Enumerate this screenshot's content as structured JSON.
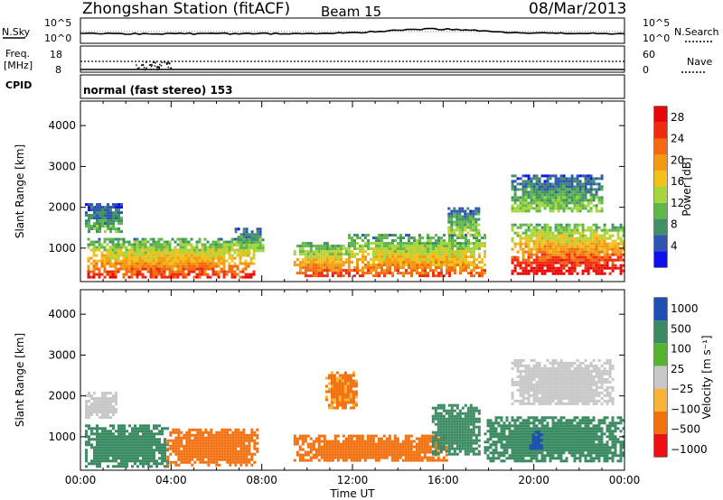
{
  "header": {
    "station": "Zhongshan Station (fitACF)",
    "beam": "Beam 15",
    "date": "08/Mar/2013"
  },
  "noise_panel": {
    "left_label": "N.Sky",
    "right_label": "N.Search",
    "tick_top": "10^5",
    "tick_bottom": "10^0"
  },
  "freq_panel": {
    "left_label_1": "Freq.",
    "left_label_2": "[MHz]",
    "left_ticks": [
      "18",
      "8"
    ],
    "right_ticks": [
      "60",
      "0"
    ],
    "right_label": "Nave"
  },
  "cpid": {
    "label": "CPID",
    "value": "normal (fast stereo) 153"
  },
  "colors": {
    "power": [
      "#1010ee",
      "#2e56b0",
      "#3f8f67",
      "#5fb74a",
      "#a6d63c",
      "#f2c11c",
      "#f39a12",
      "#f36a10",
      "#f02a0c",
      "#e60808"
    ],
    "velocity": [
      "#ee1010",
      "#f3700f",
      "#f7b33a",
      "#c8c8c8",
      "#55b32d",
      "#3a8a62",
      "#1d4fb5"
    ]
  },
  "chart_data": [
    {
      "type": "heatmap",
      "name": "power",
      "xlabel": "Time UT",
      "ylabel": "Slant Range [km]",
      "xlim": [
        0,
        24
      ],
      "ylim": [
        180,
        4600
      ],
      "xticks": [
        "00:00",
        "04:00",
        "08:00",
        "12:00",
        "16:00",
        "20:00",
        "00:00"
      ],
      "yticks": [
        1000,
        2000,
        3000,
        4000
      ],
      "colorbar_label": "Power [dB]",
      "colorbar_ticks": [
        "4",
        "8",
        "12",
        "16",
        "20",
        "24",
        "28"
      ],
      "regions": [
        {
          "t0": 0.3,
          "t1": 7.6,
          "r0": 300,
          "r1": 1250,
          "peak": 24
        },
        {
          "t0": 0.2,
          "t1": 1.8,
          "r0": 1400,
          "r1": 2100,
          "peak": 10
        },
        {
          "t0": 6.8,
          "t1": 8.0,
          "r0": 900,
          "r1": 1500,
          "peak": 14
        },
        {
          "t0": 9.4,
          "t1": 11.8,
          "r0": 300,
          "r1": 1150,
          "peak": 24
        },
        {
          "t0": 11.8,
          "t1": 17.8,
          "r0": 350,
          "r1": 1350,
          "peak": 22
        },
        {
          "t0": 16.2,
          "t1": 17.6,
          "r0": 1300,
          "r1": 2000,
          "peak": 14
        },
        {
          "t0": 19.0,
          "t1": 24.0,
          "r0": 350,
          "r1": 1600,
          "peak": 28
        },
        {
          "t0": 19.0,
          "t1": 23.0,
          "r0": 1900,
          "r1": 2800,
          "peak": 12
        }
      ]
    },
    {
      "type": "heatmap",
      "name": "velocity",
      "xlabel": "Time UT",
      "ylabel": "Slant Range [km]",
      "xlim": [
        0,
        24
      ],
      "ylim": [
        180,
        4600
      ],
      "xticks": [
        "00:00",
        "04:00",
        "08:00",
        "12:00",
        "16:00",
        "20:00",
        "00:00"
      ],
      "yticks": [
        1000,
        2000,
        3000,
        4000
      ],
      "colorbar_label": "Velocity [m s⁻¹]",
      "colorbar_ticks": [
        "1000",
        "500",
        "100",
        "25",
        "−25",
        "−100",
        "−500",
        "−1000"
      ],
      "regions": [
        {
          "t0": 0.2,
          "t1": 3.8,
          "r0": 300,
          "r1": 1300,
          "velocity": 150
        },
        {
          "t0": 0.2,
          "t1": 1.6,
          "r0": 1500,
          "r1": 2100,
          "velocity": 0
        },
        {
          "t0": 3.8,
          "t1": 7.8,
          "r0": 300,
          "r1": 1200,
          "velocity": -200
        },
        {
          "t0": 9.4,
          "t1": 16.2,
          "r0": 400,
          "r1": 1050,
          "velocity": -150
        },
        {
          "t0": 10.8,
          "t1": 12.2,
          "r0": 1700,
          "r1": 2600,
          "velocity": -120
        },
        {
          "t0": 15.5,
          "t1": 17.6,
          "r0": 600,
          "r1": 1800,
          "velocity": 200
        },
        {
          "t0": 17.8,
          "t1": 24.0,
          "r0": 400,
          "r1": 1500,
          "velocity": 200
        },
        {
          "t0": 19.8,
          "t1": 20.3,
          "r0": 700,
          "r1": 1150,
          "velocity": 1000
        },
        {
          "t0": 19.0,
          "t1": 23.5,
          "r0": 1800,
          "r1": 2900,
          "velocity": 10
        }
      ]
    }
  ]
}
